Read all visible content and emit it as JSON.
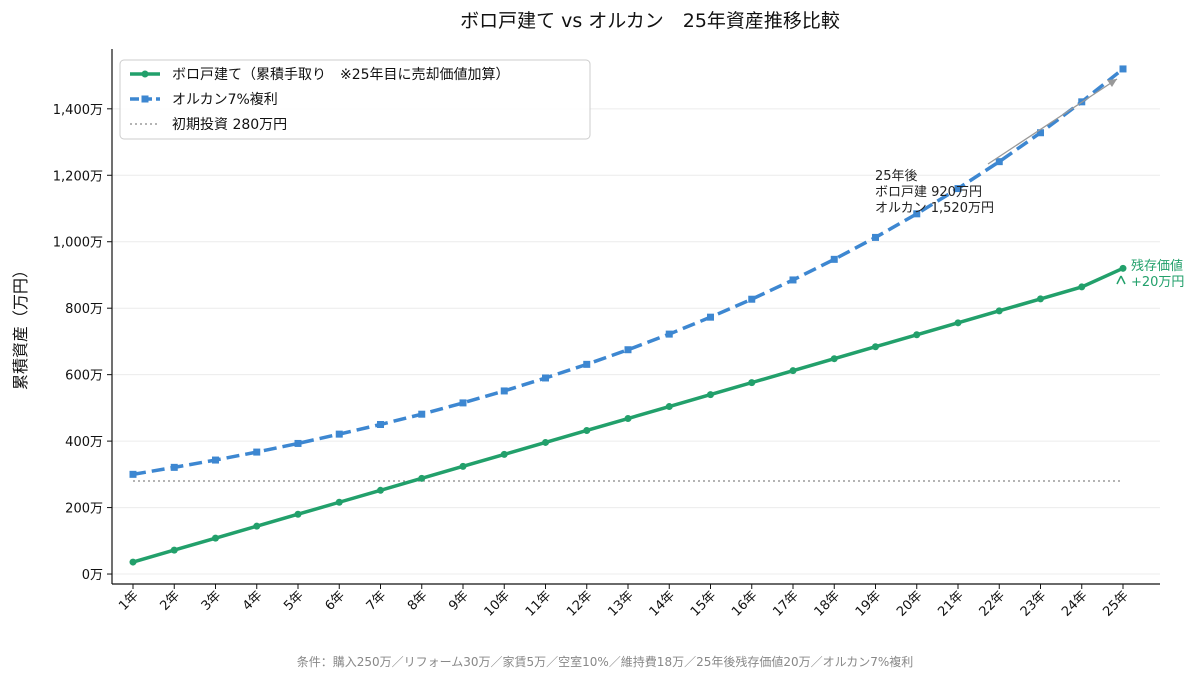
{
  "chart_data": {
    "type": "line",
    "title": "ボロ戸建て vs オルカン　25年資産推移比較",
    "ylabel": "累積資産（万円）",
    "xlabel": "",
    "ylim": [
      -30,
      1580
    ],
    "yticks": [
      0,
      200,
      400,
      600,
      800,
      1000,
      1200,
      1400
    ],
    "ytick_labels": [
      "0万",
      "200万",
      "400万",
      "600万",
      "800万",
      "1,000万",
      "1,200万",
      "1,400万"
    ],
    "categories": [
      "1年",
      "2年",
      "3年",
      "4年",
      "5年",
      "6年",
      "7年",
      "8年",
      "9年",
      "10年",
      "11年",
      "12年",
      "13年",
      "14年",
      "15年",
      "16年",
      "17年",
      "18年",
      "19年",
      "20年",
      "21年",
      "22年",
      "23年",
      "24年",
      "25年"
    ],
    "grid": "horizontal",
    "legend_position": "top-left",
    "series": [
      {
        "name": "ボロ戸建て（累積手取り　※25年目に売却価値加算）",
        "color": "#22a06b",
        "style": "solid",
        "marker": "circle",
        "values": [
          36,
          72,
          108,
          144,
          180,
          216,
          252,
          288,
          324,
          360,
          396,
          432,
          468,
          504,
          540,
          576,
          612,
          648,
          684,
          720,
          756,
          792,
          828,
          864,
          920
        ]
      },
      {
        "name": "オルカン7%複利",
        "color": "#3d87d1",
        "style": "dashed",
        "marker": "square",
        "values": [
          300,
          321,
          343,
          367,
          393,
          421,
          450,
          481,
          515,
          551,
          590,
          631,
          675,
          722,
          773,
          827,
          885,
          947,
          1013,
          1084,
          1160,
          1241,
          1328,
          1421,
          1520
        ]
      },
      {
        "name": "初期投資 280万円",
        "color": "#888888",
        "style": "dotted",
        "marker": "none",
        "values": [
          280,
          280,
          280,
          280,
          280,
          280,
          280,
          280,
          280,
          280,
          280,
          280,
          280,
          280,
          280,
          280,
          280,
          280,
          280,
          280,
          280,
          280,
          280,
          280,
          280
        ]
      }
    ],
    "annotations": {
      "final_lines": [
        "25年後",
        "ボロ戸建 920万円",
        "オルカン 1,520万円"
      ],
      "residual_lines": [
        "残存価値",
        "+20万円"
      ]
    }
  },
  "footer": "条件：購入250万／リフォーム30万／家賃5万／空室10%／維持費18万／25年後残存価値20万／オルカン7%複利"
}
